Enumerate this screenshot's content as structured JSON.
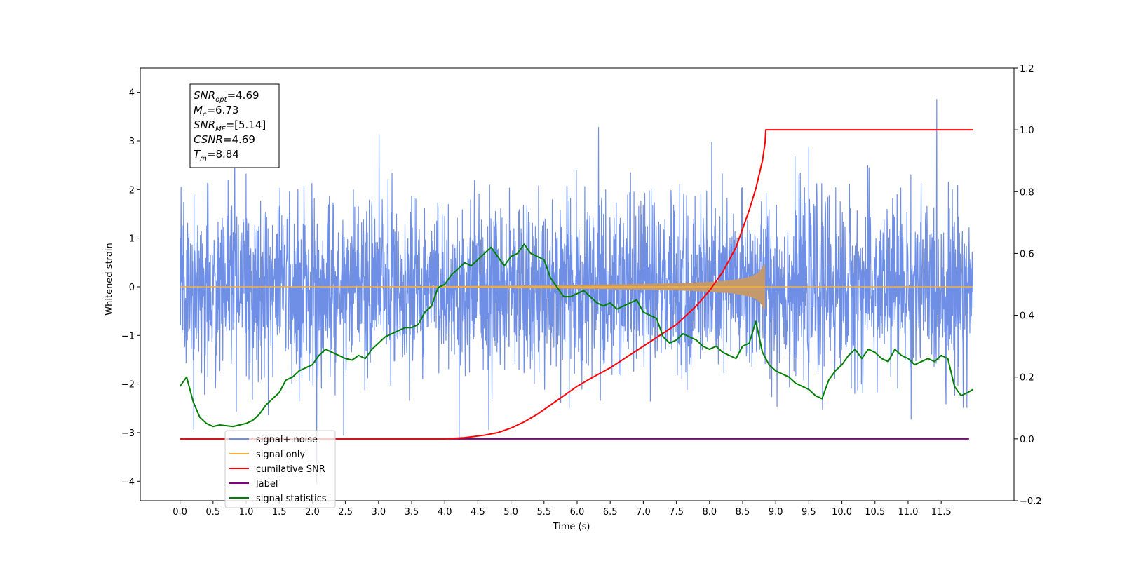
{
  "chart_data": {
    "type": "line",
    "xlabel": "Time (s)",
    "ylabel": "Whitened strain",
    "xlim": [
      -0.6,
      12.6
    ],
    "ylim": [
      -4.4,
      4.5
    ],
    "ylim_right": [
      -0.2,
      1.2
    ],
    "xticks": [
      0.0,
      0.5,
      1.0,
      1.5,
      2.0,
      2.5,
      3.0,
      3.5,
      4.0,
      4.5,
      5.0,
      5.5,
      6.0,
      6.5,
      7.0,
      7.5,
      8.0,
      8.5,
      9.0,
      9.5,
      10.0,
      10.5,
      11.0,
      11.5
    ],
    "xtick_labels": [
      "0.0",
      "0.5",
      "1.0",
      "1.5",
      "2.0",
      "2.5",
      "3.0",
      "3.5",
      "4.0",
      "4.5",
      "5.0",
      "5.5",
      "6.0",
      "6.5",
      "7.0",
      "7.5",
      "8.0",
      "8.5",
      "9.0",
      "9.5",
      "10.0",
      "10.5",
      "11.0",
      "11.5"
    ],
    "yticks_left": [
      -4,
      -3,
      -2,
      -1,
      0,
      1,
      2,
      3,
      4
    ],
    "ytick_labels_left": [
      "−4",
      "−3",
      "−2",
      "−1",
      "0",
      "1",
      "2",
      "3",
      "4"
    ],
    "yticks_right": [
      -0.2,
      0.0,
      0.2,
      0.4,
      0.6,
      0.8,
      1.0,
      1.2
    ],
    "ytick_labels_right": [
      "−0.2",
      "0.0",
      "0.2",
      "0.4",
      "0.6",
      "0.8",
      "1.0",
      "1.2"
    ],
    "colors": {
      "noise": "#6f8fe6",
      "signal": "#f5b03c",
      "signal_fill": "#c49a6c",
      "snr": "#ff0000",
      "label": "#800080",
      "stats": "#008000"
    },
    "noise": {
      "x_range": [
        0.0,
        11.98
      ],
      "spread": 0.9,
      "min": -4.05,
      "max": 4.12
    },
    "signal_envelope": {
      "x": [
        0.0,
        2.0,
        4.0,
        5.0,
        6.0,
        7.0,
        7.5,
        8.0,
        8.3,
        8.5,
        8.65,
        8.75,
        8.82,
        8.84
      ],
      "y": [
        0.0,
        0.005,
        0.015,
        0.025,
        0.04,
        0.06,
        0.075,
        0.1,
        0.13,
        0.17,
        0.22,
        0.3,
        0.45,
        0.47
      ]
    },
    "series": [
      {
        "name": "cumilative SNR",
        "axis": "right",
        "x": [
          0.0,
          4.0,
          4.3,
          4.6,
          4.8,
          5.0,
          5.2,
          5.4,
          5.6,
          5.8,
          6.0,
          6.2,
          6.5,
          7.0,
          7.5,
          7.8,
          8.0,
          8.2,
          8.4,
          8.6,
          8.7,
          8.8,
          8.84,
          8.85,
          11.98
        ],
        "y": [
          0.0,
          0.0,
          0.004,
          0.012,
          0.02,
          0.035,
          0.055,
          0.08,
          0.11,
          0.14,
          0.17,
          0.195,
          0.23,
          0.3,
          0.37,
          0.43,
          0.48,
          0.54,
          0.62,
          0.74,
          0.81,
          0.9,
          0.96,
          1.0,
          1.0
        ]
      },
      {
        "name": "label",
        "axis": "right",
        "x": [
          0.0,
          11.92
        ],
        "y": [
          0.0,
          0.0
        ]
      },
      {
        "name": "signal statistics",
        "axis": "right",
        "x": [
          0.0,
          0.1,
          0.2,
          0.3,
          0.4,
          0.5,
          0.6,
          0.8,
          0.9,
          1.0,
          1.1,
          1.2,
          1.3,
          1.4,
          1.5,
          1.6,
          1.7,
          1.8,
          1.9,
          2.0,
          2.1,
          2.2,
          2.3,
          2.4,
          2.5,
          2.6,
          2.7,
          2.8,
          2.9,
          3.0,
          3.1,
          3.2,
          3.3,
          3.4,
          3.5,
          3.6,
          3.7,
          3.8,
          3.9,
          4.0,
          4.1,
          4.2,
          4.3,
          4.4,
          4.5,
          4.6,
          4.7,
          4.8,
          4.9,
          5.0,
          5.1,
          5.2,
          5.3,
          5.4,
          5.5,
          5.6,
          5.7,
          5.8,
          5.9,
          6.0,
          6.1,
          6.2,
          6.3,
          6.4,
          6.5,
          6.6,
          6.7,
          6.8,
          6.9,
          7.0,
          7.1,
          7.2,
          7.3,
          7.4,
          7.5,
          7.6,
          7.7,
          7.8,
          7.9,
          8.0,
          8.1,
          8.2,
          8.3,
          8.4,
          8.5,
          8.6,
          8.7,
          8.8,
          8.9,
          9.0,
          9.1,
          9.2,
          9.3,
          9.4,
          9.5,
          9.6,
          9.7,
          9.8,
          9.9,
          10.0,
          10.1,
          10.2,
          10.3,
          10.4,
          10.5,
          10.6,
          10.7,
          10.8,
          10.9,
          11.0,
          11.1,
          11.2,
          11.3,
          11.4,
          11.5,
          11.6,
          11.7,
          11.8,
          11.9,
          11.98
        ],
        "y": [
          0.17,
          0.2,
          0.12,
          0.07,
          0.05,
          0.04,
          0.045,
          0.04,
          0.045,
          0.05,
          0.06,
          0.08,
          0.11,
          0.13,
          0.15,
          0.19,
          0.2,
          0.22,
          0.23,
          0.24,
          0.27,
          0.29,
          0.28,
          0.27,
          0.26,
          0.255,
          0.27,
          0.26,
          0.29,
          0.31,
          0.33,
          0.34,
          0.35,
          0.36,
          0.36,
          0.37,
          0.41,
          0.43,
          0.49,
          0.5,
          0.53,
          0.55,
          0.57,
          0.56,
          0.58,
          0.6,
          0.62,
          0.59,
          0.56,
          0.59,
          0.6,
          0.63,
          0.6,
          0.59,
          0.58,
          0.52,
          0.49,
          0.46,
          0.46,
          0.47,
          0.48,
          0.46,
          0.44,
          0.43,
          0.44,
          0.42,
          0.43,
          0.44,
          0.45,
          0.41,
          0.4,
          0.39,
          0.33,
          0.31,
          0.32,
          0.34,
          0.33,
          0.32,
          0.3,
          0.29,
          0.3,
          0.28,
          0.27,
          0.26,
          0.3,
          0.31,
          0.38,
          0.28,
          0.24,
          0.22,
          0.21,
          0.2,
          0.18,
          0.17,
          0.16,
          0.14,
          0.13,
          0.19,
          0.22,
          0.24,
          0.27,
          0.29,
          0.26,
          0.29,
          0.28,
          0.26,
          0.25,
          0.29,
          0.27,
          0.26,
          0.24,
          0.25,
          0.26,
          0.25,
          0.27,
          0.26,
          0.17,
          0.14,
          0.15,
          0.16
        ]
      }
    ],
    "legend": {
      "position": "lower-left",
      "entries": [
        {
          "label": "signal+ noise",
          "color": "#6f8fe6"
        },
        {
          "label": "signal only",
          "color": "#f5b03c"
        },
        {
          "label": "cumilative SNR",
          "color": "#ff0000"
        },
        {
          "label": "label",
          "color": "#800080"
        },
        {
          "label": "signal statistics",
          "color": "#008000"
        }
      ]
    },
    "annotation": [
      {
        "name": "SNR",
        "sub": "opt",
        "value": "=4.69"
      },
      {
        "name": "M",
        "sub": "c",
        "value": "=6.73"
      },
      {
        "name": "SNR",
        "sub": "MF",
        "value": "=[5.14]"
      },
      {
        "name": "CSNR",
        "sub": "",
        "value": "=4.69"
      },
      {
        "name": "T",
        "sub": "m",
        "value": "=8.84"
      }
    ]
  }
}
